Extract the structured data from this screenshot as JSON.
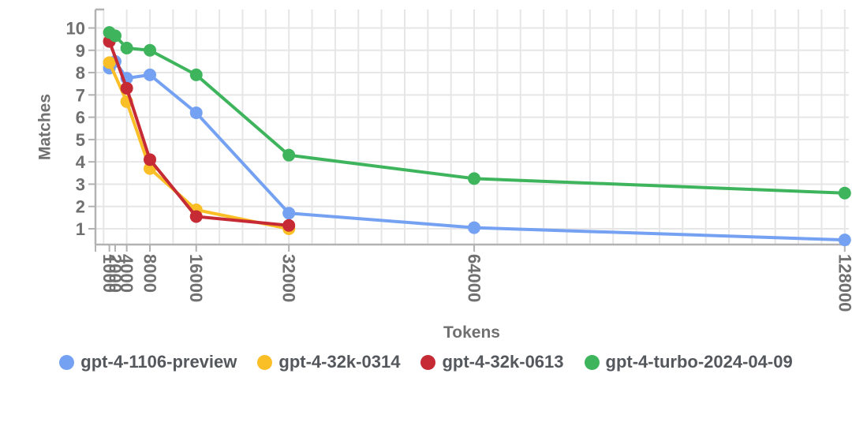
{
  "chart_data": {
    "type": "line",
    "title": "",
    "xlabel": "Tokens",
    "ylabel": "Matches",
    "x_scale": "linear",
    "x_range": [
      0,
      128000
    ],
    "y_range": [
      0,
      10.8
    ],
    "x_ticks": [
      "1000",
      "2000",
      "4000",
      "8000",
      "16000",
      "32000",
      "64000",
      "128000"
    ],
    "x_tick_values": [
      1000,
      2000,
      4000,
      8000,
      16000,
      32000,
      64000,
      128000
    ],
    "y_ticks": [
      "1",
      "2",
      "3",
      "4",
      "5",
      "6",
      "7",
      "8",
      "9",
      "10"
    ],
    "y_tick_values": [
      1,
      2,
      3,
      4,
      5,
      6,
      7,
      8,
      9,
      10
    ],
    "grid": true,
    "x_gridline_step": 4000,
    "legend_position": "bottom",
    "series": [
      {
        "name": "gpt-4-1106-preview",
        "color": "#74a1f2",
        "x": [
          1000,
          2000,
          4000,
          8000,
          16000,
          32000,
          64000,
          128000
        ],
        "y": [
          8.2,
          8.5,
          7.75,
          7.9,
          6.2,
          1.7,
          1.05,
          0.5
        ]
      },
      {
        "name": "gpt-4-32k-0314",
        "color": "#fabe27",
        "x": [
          1000,
          4000,
          8000,
          16000,
          32000
        ],
        "y": [
          8.45,
          6.7,
          3.7,
          1.85,
          1.0
        ]
      },
      {
        "name": "gpt-4-32k-0613",
        "color": "#c62a34",
        "x": [
          1000,
          4000,
          8000,
          16000,
          32000
        ],
        "y": [
          9.4,
          7.3,
          4.1,
          1.55,
          1.15
        ]
      },
      {
        "name": "gpt-4-turbo-2024-04-09",
        "color": "#3eb45c",
        "x": [
          1000,
          2000,
          4000,
          8000,
          16000,
          32000,
          64000,
          128000
        ],
        "y": [
          9.8,
          9.65,
          9.1,
          9.0,
          7.9,
          4.3,
          3.25,
          2.6
        ]
      }
    ]
  },
  "style": {
    "background": "#ffffff",
    "grid_color": "#e6e6e6",
    "axis_color": "#b2b2b2",
    "tick_label_color": "#707070",
    "axis_title_color": "#707070",
    "legend_text_color": "#54585d"
  }
}
